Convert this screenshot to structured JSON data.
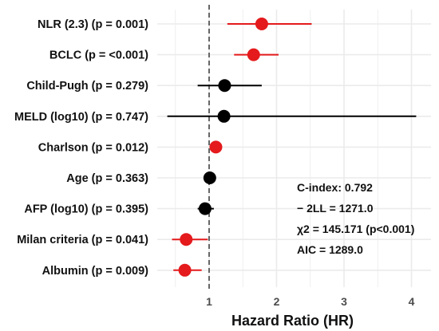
{
  "chart_data": {
    "type": "forest",
    "xlabel": "Hazard Ratio (HR)",
    "xlim": [
      0.3,
      4.1
    ],
    "xticks": [
      1,
      2,
      3,
      4
    ],
    "reference_line": 1,
    "grid": true,
    "colors": {
      "significant": "#e41a1c",
      "not_significant": "#000000",
      "reference_line": "#666666",
      "grid": "#ebebeb"
    },
    "rows": [
      {
        "label": "NLR (2.3) (p = 0.001)",
        "hr": 1.78,
        "lower": 1.27,
        "upper": 2.52,
        "significant": true
      },
      {
        "label": "BCLC (p = <0.001)",
        "hr": 1.66,
        "lower": 1.37,
        "upper": 2.03,
        "significant": true
      },
      {
        "label": "Child-Pugh (p = 0.279)",
        "hr": 1.23,
        "lower": 0.83,
        "upper": 1.78,
        "significant": false
      },
      {
        "label": "MELD (log10) (p = 0.747)",
        "hr": 1.22,
        "lower": 0.38,
        "upper": 4.07,
        "significant": false
      },
      {
        "label": "Charlson (p = 0.012)",
        "hr": 1.1,
        "lower": 1.03,
        "upper": 1.18,
        "significant": true
      },
      {
        "label": "Age (p = 0.363)",
        "hr": 1.01,
        "lower": 0.98,
        "upper": 1.04,
        "significant": false
      },
      {
        "label": "AFP (log10) (p = 0.395)",
        "hr": 0.94,
        "lower": 0.83,
        "upper": 1.07,
        "significant": false
      },
      {
        "label": "Milan criteria (p = 0.041)",
        "hr": 0.66,
        "lower": 0.45,
        "upper": 0.98,
        "significant": true
      },
      {
        "label": "Albumin (p = 0.009)",
        "hr": 0.64,
        "lower": 0.47,
        "upper": 0.89,
        "significant": true
      }
    ],
    "annotation": [
      "C-index: 0.792",
      "− 2LL = 1271.0",
      "χ2 = 145.171 (p<0.001)",
      "AIC = 1289.0"
    ]
  }
}
